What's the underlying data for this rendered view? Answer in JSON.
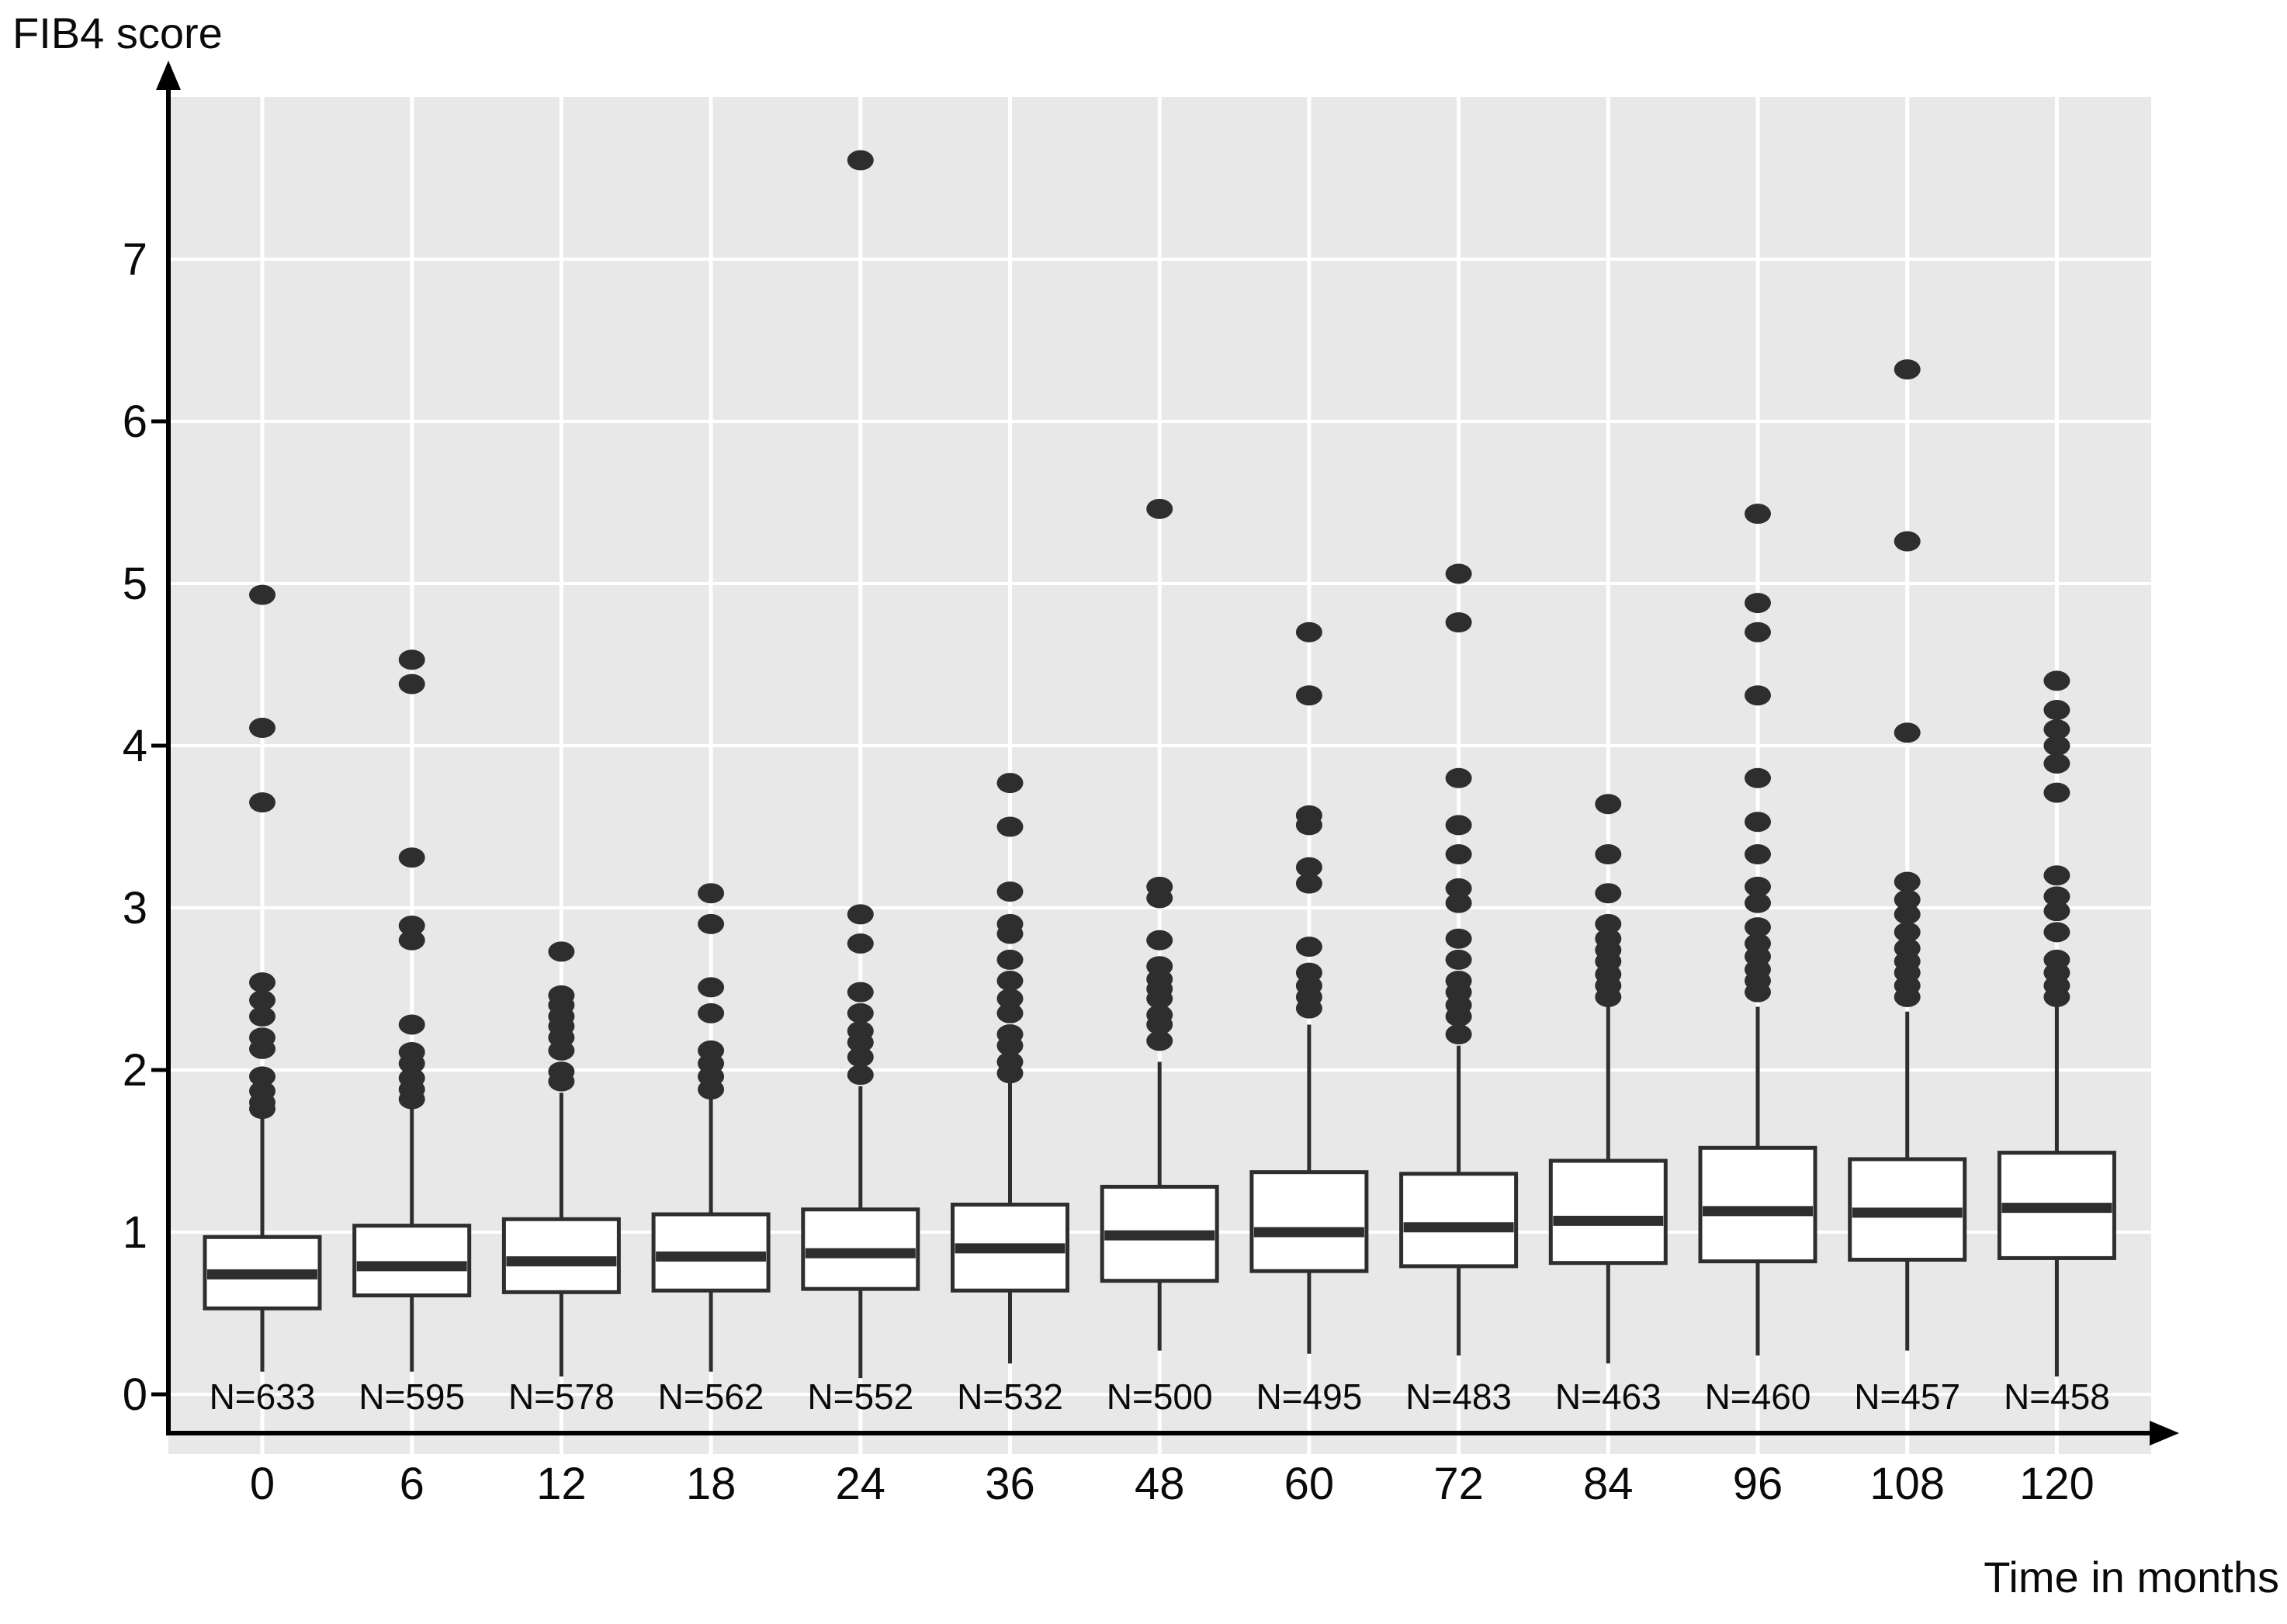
{
  "chart_data": {
    "type": "boxplot",
    "title": "",
    "ylabel": "FIB4 score",
    "xlabel": "Time in months",
    "grid": true,
    "plot_background": "#e8e8e8",
    "gridline_color": "#ffffff",
    "box_color": "#ffffff",
    "stroke_color": "#2e2e2e",
    "y_axis": {
      "min": 0,
      "max": 8,
      "tick_labels": [
        "0",
        "1",
        "2",
        "3",
        "4",
        "5",
        "6",
        "7"
      ],
      "tick_values": [
        0,
        1,
        2,
        3,
        4,
        5,
        6,
        7
      ]
    },
    "categories": [
      "0",
      "6",
      "12",
      "18",
      "24",
      "36",
      "48",
      "60",
      "72",
      "84",
      "96",
      "108",
      "120"
    ],
    "n_labels": [
      "N=633",
      "N=595",
      "N=578",
      "N=562",
      "N=552",
      "N=532",
      "N=500",
      "N=495",
      "N=483",
      "N=463",
      "N=460",
      "N=457",
      "N=458"
    ],
    "series": [
      {
        "time": "0",
        "n": "N=633",
        "q1": 0.53,
        "median": 0.74,
        "q3": 0.97,
        "whisker_low": 0.14,
        "whisker_high": 1.7,
        "outliers": [
          1.76,
          1.8,
          1.87,
          1.96,
          2.13,
          2.2,
          2.33,
          2.43,
          2.54,
          3.65,
          4.11,
          4.93
        ]
      },
      {
        "time": "6",
        "n": "N=595",
        "q1": 0.61,
        "median": 0.79,
        "q3": 1.04,
        "whisker_low": 0.14,
        "whisker_high": 1.78,
        "outliers": [
          1.82,
          1.88,
          1.95,
          2.04,
          2.11,
          2.28,
          2.8,
          2.89,
          3.31,
          4.38,
          4.53
        ]
      },
      {
        "time": "12",
        "n": "N=578",
        "q1": 0.63,
        "median": 0.82,
        "q3": 1.08,
        "whisker_low": 0.11,
        "whisker_high": 1.86,
        "outliers": [
          1.93,
          1.99,
          2.12,
          2.2,
          2.27,
          2.33,
          2.4,
          2.46,
          2.73
        ]
      },
      {
        "time": "18",
        "n": "N=562",
        "q1": 0.64,
        "median": 0.85,
        "q3": 1.11,
        "whisker_low": 0.14,
        "whisker_high": 1.82,
        "outliers": [
          1.88,
          1.96,
          2.04,
          2.12,
          2.35,
          2.51,
          2.9,
          3.09
        ]
      },
      {
        "time": "24",
        "n": "N=552",
        "q1": 0.65,
        "median": 0.87,
        "q3": 1.14,
        "whisker_low": 0.1,
        "whisker_high": 1.9,
        "outliers": [
          1.97,
          2.08,
          2.17,
          2.24,
          2.35,
          2.48,
          2.78,
          2.96,
          7.61
        ]
      },
      {
        "time": "36",
        "n": "N=532",
        "q1": 0.64,
        "median": 0.9,
        "q3": 1.17,
        "whisker_low": 0.19,
        "whisker_high": 1.95,
        "outliers": [
          1.98,
          2.05,
          2.15,
          2.22,
          2.35,
          2.44,
          2.55,
          2.68,
          2.84,
          2.9,
          3.1,
          3.5,
          3.77
        ]
      },
      {
        "time": "48",
        "n": "N=500",
        "q1": 0.7,
        "median": 0.98,
        "q3": 1.28,
        "whisker_low": 0.27,
        "whisker_high": 2.05,
        "outliers": [
          2.18,
          2.28,
          2.34,
          2.44,
          2.5,
          2.56,
          2.64,
          2.8,
          3.06,
          3.13,
          5.46
        ]
      },
      {
        "time": "60",
        "n": "N=495",
        "q1": 0.76,
        "median": 1.0,
        "q3": 1.37,
        "whisker_low": 0.25,
        "whisker_high": 2.28,
        "outliers": [
          2.38,
          2.45,
          2.52,
          2.6,
          2.76,
          3.15,
          3.25,
          3.51,
          3.57,
          4.31,
          4.7
        ]
      },
      {
        "time": "72",
        "n": "N=483",
        "q1": 0.79,
        "median": 1.03,
        "q3": 1.36,
        "whisker_low": 0.24,
        "whisker_high": 2.15,
        "outliers": [
          2.22,
          2.33,
          2.4,
          2.48,
          2.55,
          2.68,
          2.81,
          3.03,
          3.12,
          3.33,
          3.51,
          3.8,
          4.76,
          5.06
        ]
      },
      {
        "time": "84",
        "n": "N=463",
        "q1": 0.81,
        "median": 1.07,
        "q3": 1.44,
        "whisker_low": 0.19,
        "whisker_high": 2.39,
        "outliers": [
          2.45,
          2.52,
          2.59,
          2.67,
          2.74,
          2.81,
          2.9,
          3.09,
          3.33,
          3.64
        ]
      },
      {
        "time": "96",
        "n": "N=460",
        "q1": 0.82,
        "median": 1.13,
        "q3": 1.52,
        "whisker_low": 0.24,
        "whisker_high": 2.39,
        "outliers": [
          2.48,
          2.55,
          2.62,
          2.7,
          2.78,
          2.88,
          3.03,
          3.13,
          3.33,
          3.53,
          3.8,
          4.31,
          4.7,
          4.88,
          5.43
        ]
      },
      {
        "time": "108",
        "n": "N=457",
        "q1": 0.83,
        "median": 1.12,
        "q3": 1.45,
        "whisker_low": 0.27,
        "whisker_high": 2.36,
        "outliers": [
          2.45,
          2.52,
          2.6,
          2.67,
          2.75,
          2.85,
          2.96,
          3.05,
          3.16,
          4.08,
          5.26,
          6.32
        ]
      },
      {
        "time": "120",
        "n": "N=458",
        "q1": 0.84,
        "median": 1.15,
        "q3": 1.49,
        "whisker_low": 0.11,
        "whisker_high": 2.41,
        "outliers": [
          2.45,
          2.52,
          2.6,
          2.68,
          2.85,
          2.98,
          3.07,
          3.2,
          3.71,
          3.89,
          4.0,
          4.1,
          4.22,
          4.4
        ]
      }
    ]
  }
}
